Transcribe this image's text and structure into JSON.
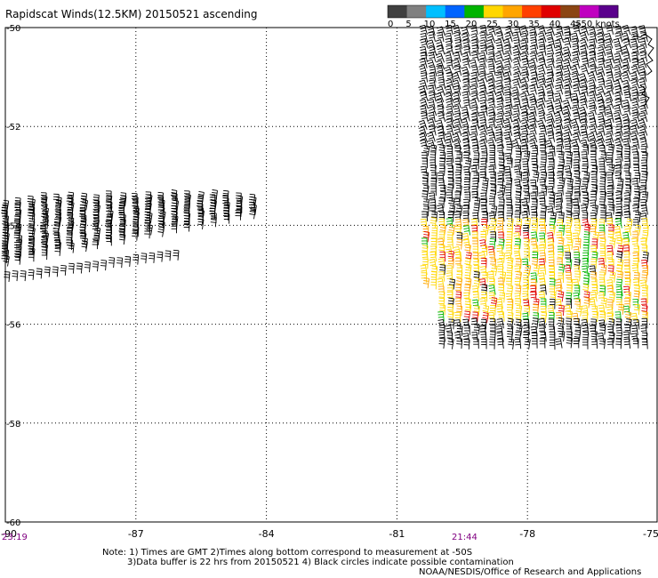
{
  "title": "Rapidscat Winds(12.5KM) 20150521 ascending",
  "legend": {
    "ticks": [
      "0",
      "5",
      "10",
      "15",
      "20",
      "25",
      "30",
      "35",
      "40",
      "45",
      ">50 knots"
    ],
    "colors": [
      "#404040",
      "#808080",
      "#00bfff",
      "#0064ff",
      "#00b400",
      "#ffd700",
      "#ffa500",
      "#ff4000",
      "#e00000",
      "#8b4513",
      "#c000c0",
      "#5a008c"
    ]
  },
  "axes": {
    "lat_labels": [
      "-50",
      "-52",
      "-54",
      "-56",
      "-58",
      "-60"
    ],
    "lon_labels": [
      "-90",
      "-87",
      "-84",
      "-81",
      "-78",
      "-75"
    ],
    "lat_range": [
      -60,
      -50
    ],
    "lon_range": [
      -90,
      -75
    ]
  },
  "times": [
    "23:19",
    "21:44"
  ],
  "notes": [
    "Note: 1) Times are GMT 2)Times along bottom correspond to measurement at -50S",
    "3)Data buffer is 22 hrs from 20150521 4) Black circles indicate possible contamination",
    "NOAA/NESDIS/Office of Research and Applications"
  ],
  "swaths": [
    {
      "lat_range": [
        -54.1,
        -55.4
      ],
      "lon_range": [
        -89.9,
        -84.3
      ],
      "speed_knots": 20,
      "color": "#000000"
    },
    {
      "lat_range": [
        -50.0,
        -56.5
      ],
      "lon_range": [
        -80.4,
        -75.0
      ],
      "speed_knots": 25,
      "color": "#000000"
    },
    {
      "lat_range": [
        -54.0,
        -56.0
      ],
      "lon_range": [
        -80.0,
        -75.0
      ],
      "speed_knots": 25,
      "color": "#ffd700"
    }
  ]
}
